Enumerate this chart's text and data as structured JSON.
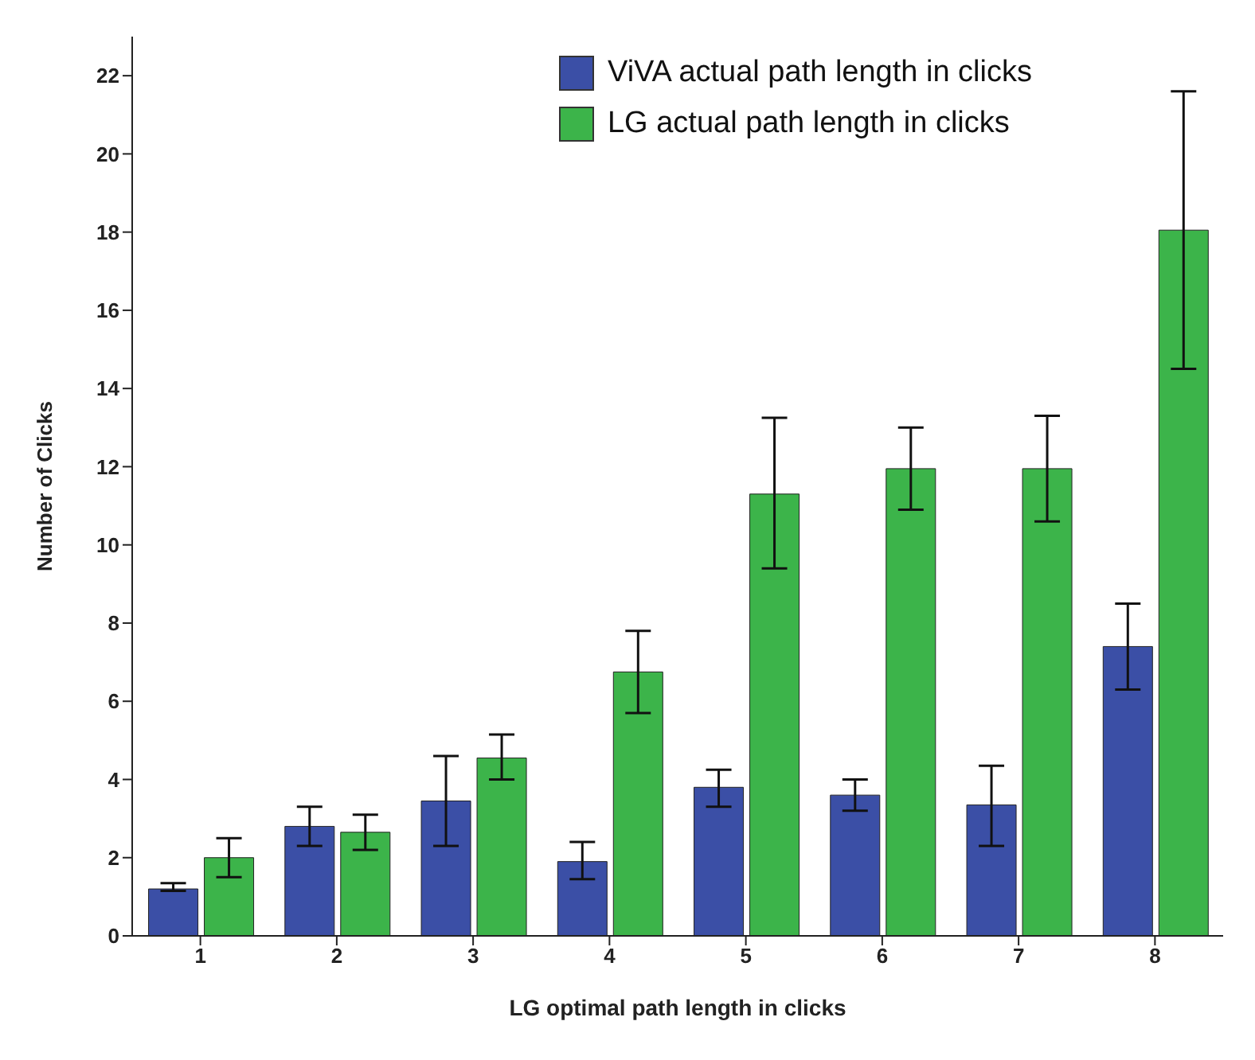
{
  "chart_data": {
    "type": "bar",
    "xlabel": "LG optimal path length in clicks",
    "ylabel": "Number of Clicks",
    "categories": [
      "1",
      "2",
      "3",
      "4",
      "5",
      "6",
      "7",
      "8"
    ],
    "series": [
      {
        "name": "ViVA actual path length in clicks",
        "color": "#3b4fa6",
        "values": [
          1.2,
          2.8,
          3.45,
          1.9,
          3.8,
          3.6,
          3.35,
          7.4
        ],
        "errors": [
          [
            1.15,
            1.35
          ],
          [
            2.3,
            3.3
          ],
          [
            2.3,
            4.6
          ],
          [
            1.45,
            2.4
          ],
          [
            3.3,
            4.25
          ],
          [
            3.2,
            4.0
          ],
          [
            2.3,
            4.35
          ],
          [
            6.3,
            8.5
          ]
        ]
      },
      {
        "name": "LG actual path length in clicks",
        "color": "#3cb44a",
        "values": [
          2.0,
          2.65,
          4.55,
          6.75,
          11.3,
          11.95,
          11.95,
          18.05
        ],
        "errors": [
          [
            1.5,
            2.5
          ],
          [
            2.2,
            3.1
          ],
          [
            4.0,
            5.15
          ],
          [
            5.7,
            7.8
          ],
          [
            9.4,
            13.25
          ],
          [
            10.9,
            13.0
          ],
          [
            10.6,
            13.3
          ],
          [
            14.5,
            21.6
          ]
        ]
      }
    ],
    "ylim": [
      0,
      23
    ],
    "yticks": [
      0,
      2,
      4,
      6,
      8,
      10,
      12,
      14,
      16,
      18,
      20,
      22
    ],
    "legend": "top right"
  }
}
